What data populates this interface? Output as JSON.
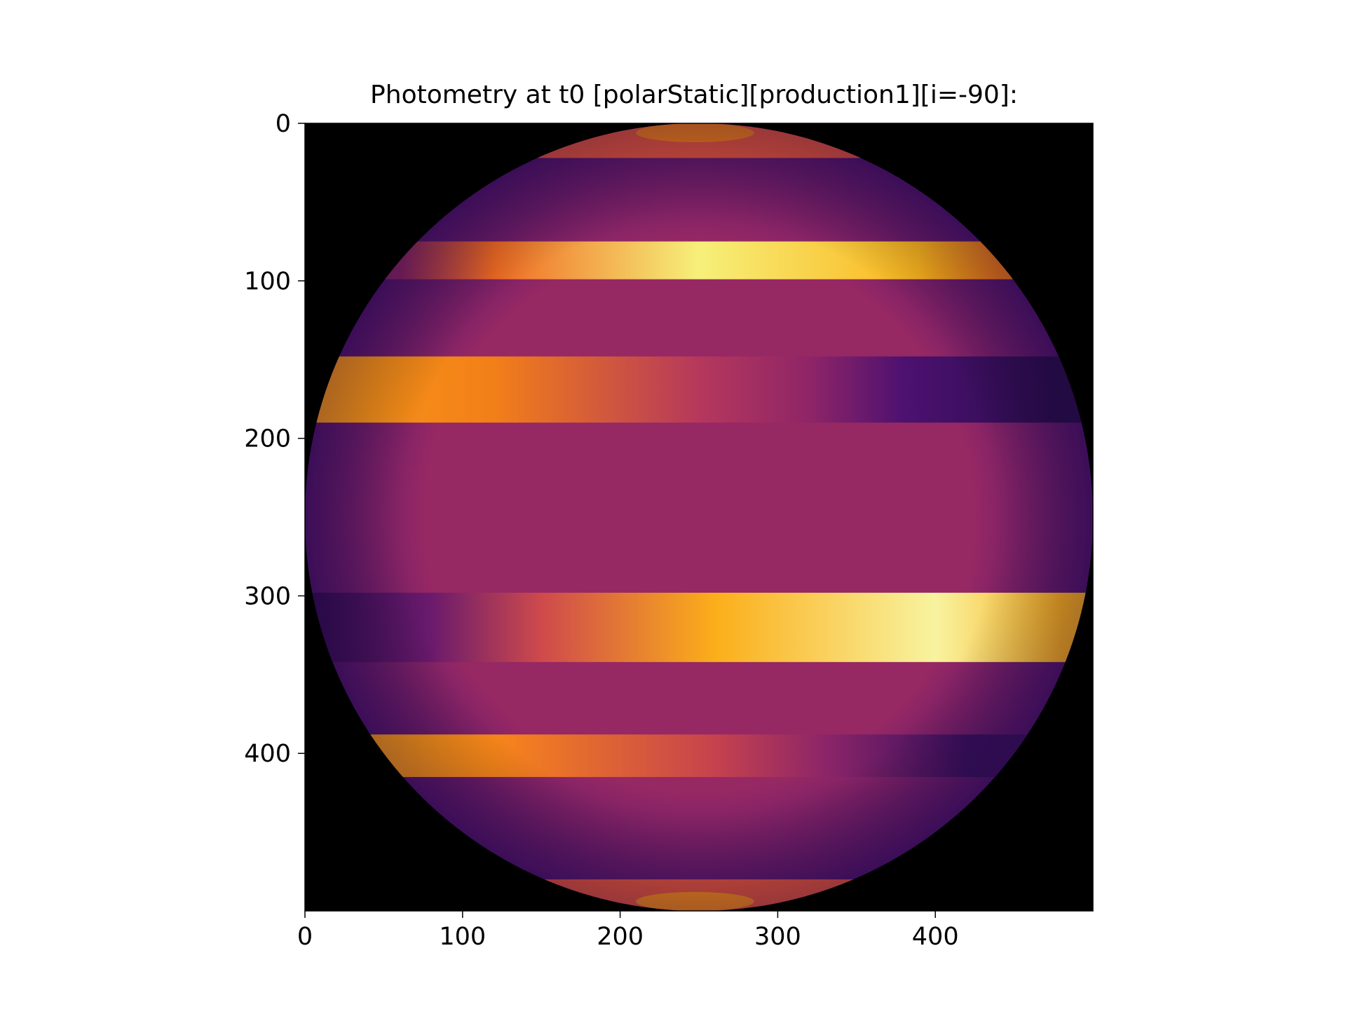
{
  "chart_data": {
    "type": "heatmap",
    "title": "Photometry at t0 [polarStatic][production1][i=-90]:",
    "xlabel": "",
    "ylabel": "",
    "xlim": [
      0,
      500
    ],
    "ylim": [
      500,
      0
    ],
    "x_ticks": [
      0,
      100,
      200,
      300,
      400
    ],
    "y_ticks": [
      0,
      100,
      200,
      300,
      400
    ],
    "grid": false,
    "legend": "none",
    "colormap": "inferno",
    "background_color": "#000000",
    "image": {
      "shape": "disk",
      "center": [
        250,
        250
      ],
      "radius": 250,
      "base_color": "#962864",
      "limb_color": "#4e136e",
      "bands": [
        {
          "y_range": [
            0,
            22
          ],
          "colors": [
            {
              "x": 0,
              "c": "#e0533f"
            },
            {
              "x": 500,
              "c": "#e0533f"
            }
          ]
        },
        {
          "y_range": [
            75,
            99
          ],
          "colors": [
            {
              "x": 60,
              "c": "#8a2466"
            },
            {
              "x": 120,
              "c": "#f06a22"
            },
            {
              "x": 250,
              "c": "#f6f07a"
            },
            {
              "x": 390,
              "c": "#fbb51d"
            },
            {
              "x": 440,
              "c": "#f47b15"
            }
          ]
        },
        {
          "y_range": [
            148,
            190
          ],
          "colors": [
            {
              "x": 0,
              "c": "#fb9c18"
            },
            {
              "x": 120,
              "c": "#f27f18"
            },
            {
              "x": 250,
              "c": "#b5385c"
            },
            {
              "x": 320,
              "c": "#8f2567"
            },
            {
              "x": 380,
              "c": "#4d1170"
            },
            {
              "x": 480,
              "c": "#270c4c"
            }
          ]
        },
        {
          "y_range": [
            298,
            342
          ],
          "colors": [
            {
              "x": 0,
              "c": "#2c0b54"
            },
            {
              "x": 80,
              "c": "#6a1a6c"
            },
            {
              "x": 150,
              "c": "#ce4a4c"
            },
            {
              "x": 260,
              "c": "#fbae1a"
            },
            {
              "x": 400,
              "c": "#f8f3a0"
            },
            {
              "x": 480,
              "c": "#fcb01e"
            }
          ]
        },
        {
          "y_range": [
            388,
            415
          ],
          "colors": [
            {
              "x": 30,
              "c": "#fba018"
            },
            {
              "x": 120,
              "c": "#f8861a"
            },
            {
              "x": 260,
              "c": "#c6424e"
            },
            {
              "x": 330,
              "c": "#8c2568"
            },
            {
              "x": 420,
              "c": "#390f60"
            }
          ]
        },
        {
          "y_range": [
            480,
            500
          ],
          "colors": [
            {
              "x": 0,
              "c": "#e0533f"
            },
            {
              "x": 500,
              "c": "#e0533f"
            }
          ]
        }
      ],
      "caps": [
        {
          "y_range": [
            0,
            12
          ],
          "x_range": [
            210,
            285
          ],
          "color": "#f17d1a"
        },
        {
          "y_range": [
            488,
            500
          ],
          "x_range": [
            210,
            285
          ],
          "color": "#f6891b"
        }
      ]
    }
  }
}
